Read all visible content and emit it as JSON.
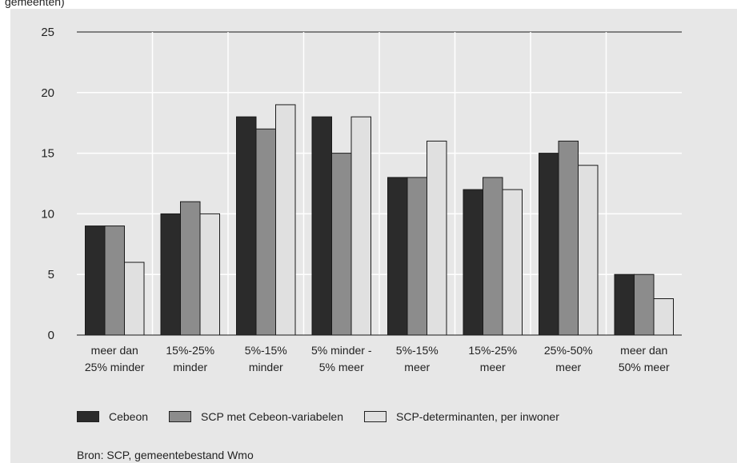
{
  "caption_fragment": "gemeenten)",
  "source": "Bron: SCP, gemeentebestand Wmo",
  "chart_data": {
    "type": "bar",
    "title": "",
    "xlabel": "",
    "ylabel": "",
    "ylim": [
      0,
      25
    ],
    "yticks": [
      0,
      5,
      10,
      15,
      20,
      25
    ],
    "grid": true,
    "legend_position": "bottom",
    "categories": [
      [
        "meer dan",
        "25% minder"
      ],
      [
        "15%-25%",
        "minder"
      ],
      [
        "5%-15%",
        "minder"
      ],
      [
        "5% minder -",
        "5% meer"
      ],
      [
        "5%-15%",
        "meer"
      ],
      [
        "15%-25%",
        "meer"
      ],
      [
        "25%-50%",
        "meer"
      ],
      [
        "meer dan",
        "50% meer"
      ]
    ],
    "series": [
      {
        "name": "Cebeon",
        "color": "#2b2b2b",
        "values": [
          9,
          10,
          18,
          18,
          13,
          12,
          15,
          5
        ]
      },
      {
        "name": "SCP met Cebeon-variabelen",
        "color": "#8c8c8c",
        "values": [
          9,
          11,
          17,
          15,
          13,
          13,
          16,
          5
        ]
      },
      {
        "name": "SCP-determinanten, per inwoner",
        "color": "#e0e0e0",
        "values": [
          6,
          10,
          19,
          18,
          16,
          12,
          14,
          3
        ]
      }
    ]
  }
}
